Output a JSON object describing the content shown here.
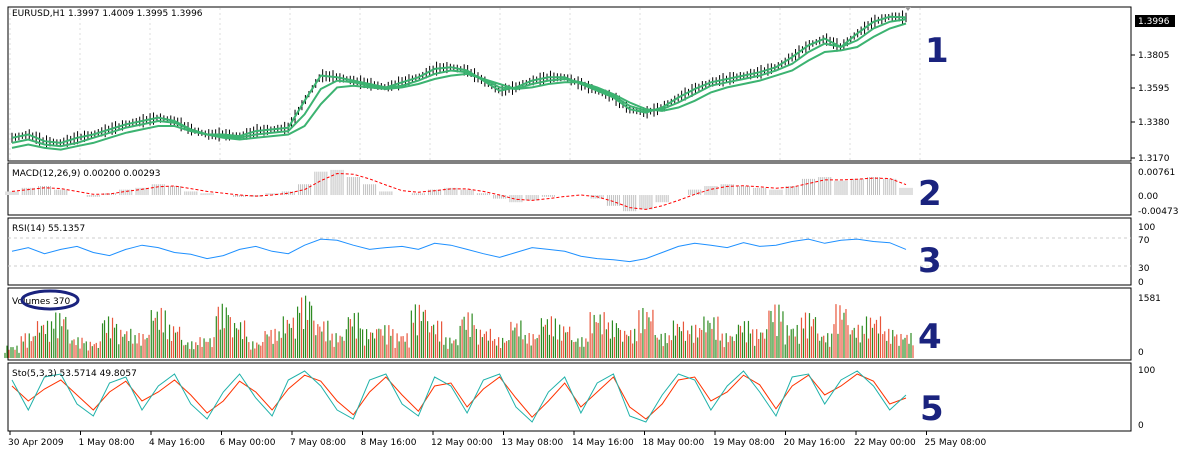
{
  "window": {
    "symbol_header": "EURUSD,H1  1.3997 1.4009 1.3995 1.3996"
  },
  "colors": {
    "ma": "#3cb371",
    "bars": "#000000",
    "macd_hist": "#c0c0c0",
    "macd_signal": "#ff0000",
    "rsi": "#1e90ff",
    "vol_up": "#2e8b22",
    "vol_down": "#e8553a",
    "sto_main": "#20b2aa",
    "sto_signal": "#ff3300",
    "annotation": "#1a237e"
  },
  "chart_data": [
    {
      "id": "price",
      "type": "line",
      "title": "EURUSD,H1  1.3997 1.4009 1.3995 1.3996",
      "y_ticks": [
        "1.3996",
        "1.3805",
        "1.3595",
        "1.3380",
        "1.3170"
      ],
      "current_price": "1.3996",
      "ylim": [
        1.316,
        1.404
      ],
      "series": [
        {
          "values": [
            1.328,
            1.33,
            1.326,
            1.325,
            1.328,
            1.33,
            1.333,
            1.336,
            1.338,
            1.34,
            1.338,
            1.333,
            1.33,
            1.33,
            1.329,
            1.332,
            1.333,
            1.334,
            1.35,
            1.365,
            1.364,
            1.362,
            1.36,
            1.358,
            1.361,
            1.364,
            1.369,
            1.37,
            1.368,
            1.362,
            1.356,
            1.358,
            1.362,
            1.364,
            1.364,
            1.36,
            1.356,
            1.352,
            1.345,
            1.343,
            1.346,
            1.352,
            1.357,
            1.361,
            1.363,
            1.365,
            1.367,
            1.37,
            1.376,
            1.383,
            1.387,
            1.382,
            1.39,
            1.397,
            1.4,
            1.3996
          ]
        },
        {
          "values": [
            1.325,
            1.327,
            1.324,
            1.323,
            1.325,
            1.328,
            1.331,
            1.334,
            1.336,
            1.338,
            1.337,
            1.333,
            1.33,
            1.329,
            1.328,
            1.33,
            1.331,
            1.332,
            1.342,
            1.357,
            1.362,
            1.361,
            1.359,
            1.358,
            1.359,
            1.362,
            1.366,
            1.368,
            1.367,
            1.363,
            1.358,
            1.357,
            1.36,
            1.362,
            1.363,
            1.361,
            1.357,
            1.353,
            1.347,
            1.344,
            1.345,
            1.349,
            1.354,
            1.359,
            1.361,
            1.363,
            1.365,
            1.368,
            1.372,
            1.379,
            1.384,
            1.382,
            1.386,
            1.393,
            1.397,
            1.3985
          ]
        },
        {
          "values": [
            1.322,
            1.324,
            1.322,
            1.321,
            1.323,
            1.325,
            1.328,
            1.331,
            1.333,
            1.335,
            1.335,
            1.332,
            1.33,
            1.328,
            1.327,
            1.328,
            1.329,
            1.33,
            1.335,
            1.348,
            1.358,
            1.359,
            1.358,
            1.357,
            1.358,
            1.36,
            1.363,
            1.365,
            1.366,
            1.363,
            1.36,
            1.357,
            1.358,
            1.36,
            1.361,
            1.361,
            1.358,
            1.354,
            1.349,
            1.345,
            1.344,
            1.346,
            1.35,
            1.355,
            1.358,
            1.36,
            1.362,
            1.365,
            1.368,
            1.374,
            1.379,
            1.38,
            1.382,
            1.388,
            1.393,
            1.396
          ]
        }
      ]
    },
    {
      "id": "macd",
      "type": "bar",
      "title": "MACD(12,26,9) 0.00200 0.00293",
      "y_ticks": [
        "0.00761",
        "0.00",
        "-0.00473"
      ],
      "ylim": [
        -0.005,
        0.0078
      ],
      "histogram": [
        0.001,
        0.002,
        0.0025,
        0.0015,
        0.0,
        -0.0005,
        0.0005,
        0.0015,
        0.002,
        0.003,
        0.0025,
        0.001,
        0.0005,
        0.0,
        -0.0005,
        -0.0005,
        0.0005,
        0.001,
        0.003,
        0.0065,
        0.007,
        0.005,
        0.003,
        0.001,
        0.0,
        0.0005,
        0.0015,
        0.002,
        0.0015,
        0.0005,
        -0.001,
        -0.002,
        -0.0015,
        -0.0005,
        0.0,
        0.0,
        -0.001,
        -0.003,
        -0.0045,
        -0.004,
        -0.002,
        0.0,
        0.0015,
        0.0025,
        0.003,
        0.0025,
        0.002,
        0.0015,
        0.0025,
        0.0045,
        0.005,
        0.004,
        0.0045,
        0.005,
        0.0045,
        0.002
      ],
      "signal": [
        0.001,
        0.0015,
        0.002,
        0.0018,
        0.001,
        0.0002,
        0.0003,
        0.001,
        0.0016,
        0.0023,
        0.0025,
        0.0018,
        0.001,
        0.0005,
        0.0,
        -0.0003,
        0.0,
        0.0005,
        0.0015,
        0.004,
        0.006,
        0.0058,
        0.0045,
        0.0028,
        0.0012,
        0.0008,
        0.0012,
        0.0017,
        0.0017,
        0.001,
        0.0,
        -0.0012,
        -0.0015,
        -0.001,
        -0.0004,
        0.0,
        -0.0005,
        -0.0018,
        -0.0035,
        -0.004,
        -0.003,
        -0.0015,
        0.0002,
        0.0016,
        0.0024,
        0.0026,
        0.0023,
        0.0019,
        0.0022,
        0.0032,
        0.0042,
        0.0042,
        0.0044,
        0.0047,
        0.0046,
        0.0029
      ]
    },
    {
      "id": "rsi",
      "type": "line",
      "title": "RSI(14) 55.1357",
      "y_ticks": [
        "100",
        "70",
        "30",
        "0"
      ],
      "ylim": [
        0,
        100
      ],
      "values": [
        52,
        58,
        48,
        55,
        60,
        50,
        45,
        55,
        62,
        58,
        50,
        47,
        40,
        45,
        55,
        60,
        52,
        48,
        62,
        72,
        70,
        62,
        55,
        58,
        60,
        55,
        65,
        62,
        55,
        48,
        42,
        50,
        58,
        55,
        52,
        44,
        40,
        38,
        35,
        40,
        50,
        60,
        65,
        62,
        58,
        66,
        60,
        62,
        68,
        72,
        65,
        70,
        72,
        68,
        66,
        55
      ]
    },
    {
      "id": "volume",
      "type": "bar",
      "title": "Volumes 370",
      "y_ticks": [
        "1581",
        "0"
      ],
      "ylim": [
        0,
        1581
      ],
      "values": [
        300,
        600,
        900,
        1100,
        500,
        400,
        1000,
        700,
        600,
        1200,
        800,
        400,
        500,
        1300,
        900,
        400,
        700,
        1000,
        1500,
        900,
        600,
        1100,
        700,
        800,
        600,
        1300,
        900,
        500,
        1100,
        700,
        500,
        900,
        600,
        1000,
        800,
        500,
        1100,
        900,
        700,
        1200,
        600,
        900,
        800,
        1000,
        600,
        900,
        700,
        1300,
        800,
        1100,
        600,
        1300,
        800,
        1000,
        700,
        600
      ],
      "up": [
        true,
        false,
        true,
        true,
        false,
        false,
        true,
        true,
        false,
        true,
        false,
        true,
        false,
        true,
        true,
        false,
        false,
        true,
        true,
        false,
        false,
        true,
        true,
        false,
        false,
        true,
        false,
        true,
        true,
        false,
        false,
        true,
        false,
        true,
        false,
        true,
        false,
        true,
        false,
        false,
        true,
        true,
        false,
        true,
        false,
        true,
        false,
        true,
        true,
        false,
        true,
        false,
        true,
        false,
        false,
        true
      ]
    },
    {
      "id": "stochastic",
      "type": "line",
      "title": "Sto(5,3,3) 53.5714 49.8057",
      "y_ticks": [
        "100",
        "0"
      ],
      "ylim": [
        0,
        100
      ],
      "main": [
        80,
        30,
        85,
        90,
        40,
        20,
        75,
        85,
        30,
        70,
        90,
        40,
        15,
        60,
        90,
        50,
        20,
        80,
        95,
        70,
        30,
        15,
        80,
        90,
        40,
        20,
        85,
        70,
        25,
        80,
        90,
        35,
        10,
        60,
        85,
        25,
        75,
        90,
        20,
        10,
        55,
        90,
        80,
        30,
        70,
        95,
        60,
        20,
        85,
        90,
        40,
        80,
        95,
        70,
        30,
        55
      ],
      "signal": [
        70,
        45,
        65,
        80,
        55,
        30,
        60,
        78,
        45,
        60,
        80,
        55,
        25,
        45,
        78,
        60,
        30,
        65,
        88,
        78,
        45,
        22,
        60,
        85,
        55,
        28,
        70,
        75,
        35,
        65,
        85,
        50,
        18,
        45,
        75,
        35,
        60,
        85,
        35,
        15,
        40,
        80,
        85,
        45,
        60,
        88,
        72,
        32,
        70,
        88,
        55,
        70,
        90,
        78,
        40,
        50
      ]
    }
  ],
  "x_axis": {
    "labels": [
      "30 Apr 2009",
      "1 May 08:00",
      "4 May 16:00",
      "6 May 00:00",
      "7 May 08:00",
      "8 May 16:00",
      "12 May 00:00",
      "13 May 08:00",
      "14 May 16:00",
      "18 May 00:00",
      "19 May 08:00",
      "20 May 16:00",
      "22 May 00:00",
      "25 May 08:00"
    ]
  },
  "annotations": [
    "1",
    "2",
    "3",
    "4",
    "5"
  ]
}
